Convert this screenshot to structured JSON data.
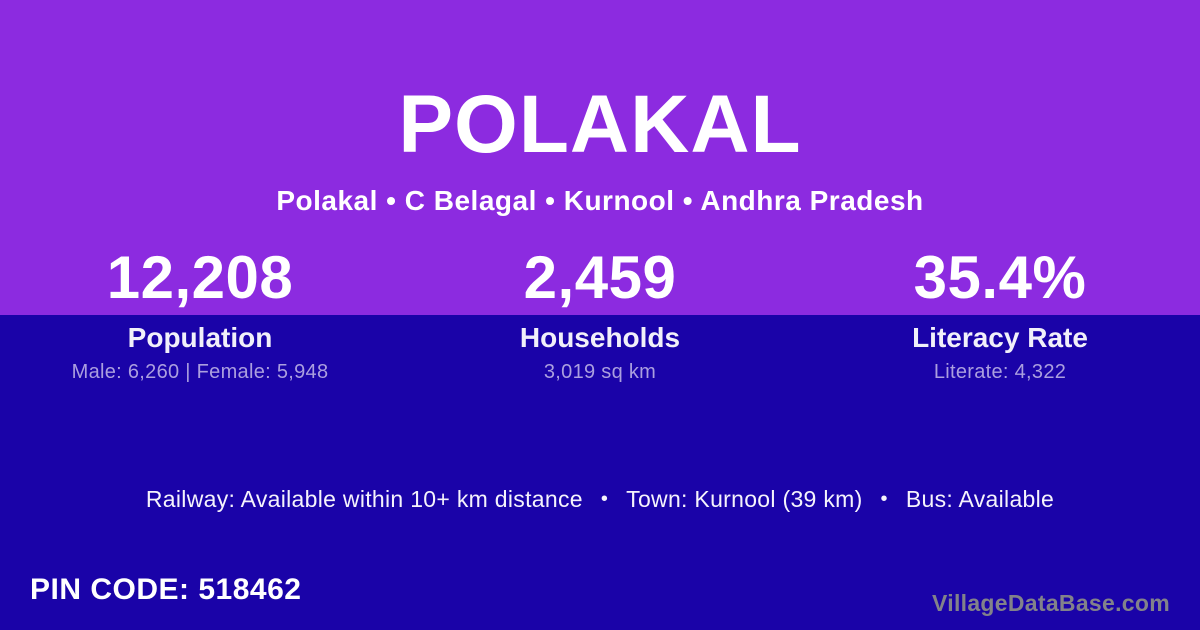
{
  "theme": {
    "top_background": "#8C2BE0",
    "bottom_background": "#1A03A8",
    "text_primary": "#FFFFFF",
    "text_muted": "#AB9FDF",
    "watermark_gray": "#82828A"
  },
  "header": {
    "title": "POLAKAL",
    "breadcrumb": "Polakal • C Belagal • Kurnool • Andhra Pradesh"
  },
  "stats": [
    {
      "value": "12,208",
      "label": "Population",
      "detail": "Male: 6,260 | Female: 5,948"
    },
    {
      "value": "2,459",
      "label": "Households",
      "detail": "3,019 sq km"
    },
    {
      "value": "35.4%",
      "label": "Literacy Rate",
      "detail": "Literate: 4,322"
    }
  ],
  "transport": {
    "separator": "•",
    "items": [
      "Railway: Available within 10+ km distance",
      "Town: Kurnool (39 km)",
      "Bus: Available"
    ]
  },
  "footer": {
    "pin_code": "PIN CODE: 518462",
    "site": "VillageDataBase.com"
  }
}
